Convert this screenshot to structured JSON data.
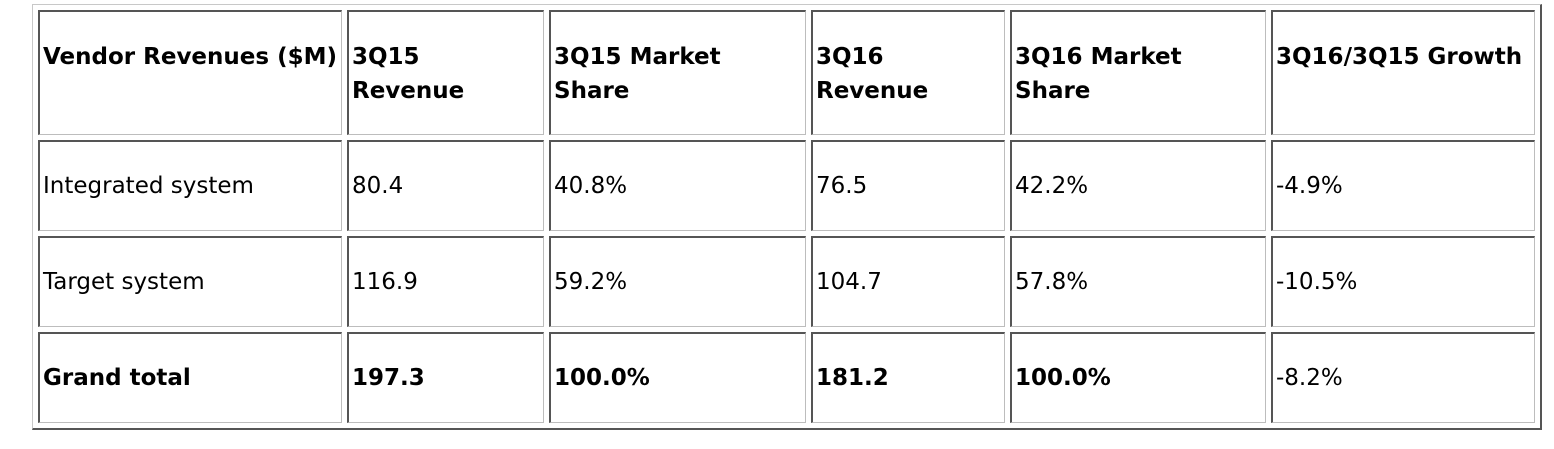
{
  "table": {
    "headers": [
      "Vendor Revenues ($M)",
      "3Q15 Revenue",
      "3Q15 Market Share",
      "3Q16 Revenue",
      "3Q16 Market Share",
      "3Q16/3Q15 Growth"
    ],
    "rows": [
      [
        "Integrated system",
        "80.4",
        "40.8%",
        "76.5",
        "42.2%",
        "-4.9%"
      ],
      [
        "Target system",
        "116.9",
        "59.2%",
        "104.7",
        "57.8%",
        "-10.5%"
      ]
    ],
    "total_row": [
      "Grand total",
      "197.3",
      "100.0%",
      "181.2",
      "100.0%",
      "-8.2%"
    ]
  }
}
